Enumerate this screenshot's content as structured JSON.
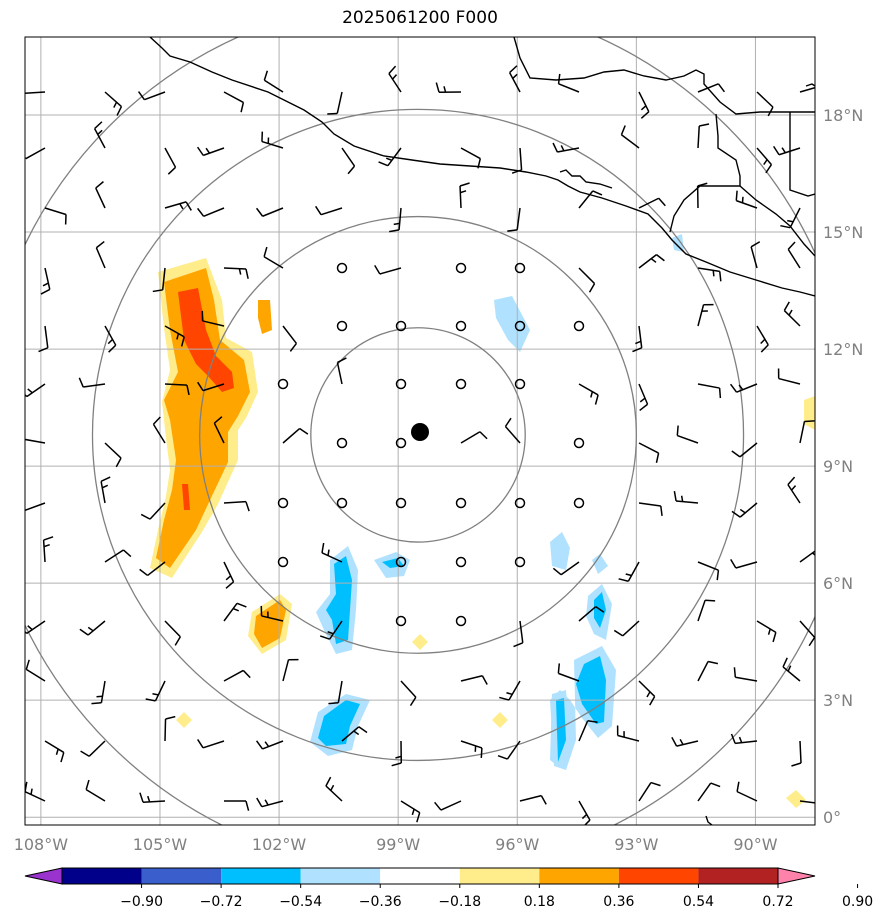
{
  "title": "2025061200 F000",
  "map": {
    "lon_range": [
      -108.4,
      -88.5
    ],
    "lat_range": [
      -0.2,
      20.0
    ],
    "lon_ticks": [
      {
        "value": -108,
        "label": "108°W"
      },
      {
        "value": -105,
        "label": "105°W"
      },
      {
        "value": -102,
        "label": "102°W"
      },
      {
        "value": -99,
        "label": "99°W"
      },
      {
        "value": -96,
        "label": "96°W"
      },
      {
        "value": -93,
        "label": "93°W"
      },
      {
        "value": -90,
        "label": "90°W"
      }
    ],
    "lat_ticks": [
      {
        "value": 0,
        "label": "0°"
      },
      {
        "value": 3,
        "label": "3°N"
      },
      {
        "value": 6,
        "label": "6°N"
      },
      {
        "value": 9,
        "label": "9°N"
      },
      {
        "value": 12,
        "label": "12°N"
      },
      {
        "value": 15,
        "label": "15°N"
      },
      {
        "value": 18,
        "label": "18°N"
      }
    ],
    "center": {
      "lon": -98.5,
      "lat": 9.8
    },
    "range_rings_deg": [
      2.7,
      5.5,
      8.2,
      11.0
    ],
    "colors": {
      "grid": "#b0b0b0",
      "ring": "#808080",
      "coast": "#000000"
    }
  },
  "colorbar": {
    "levels": [
      "−0.90",
      "−0.72",
      "−0.54",
      "−0.36",
      "−0.18",
      "0.18",
      "0.36",
      "0.54",
      "0.72",
      "0.90"
    ],
    "colors": [
      "#9a32cd",
      "#00008b",
      "#3a5fcd",
      "#00bfff",
      "#b0e2ff",
      "#ffffff",
      "#ffec8b",
      "#ffa500",
      "#ff4500",
      "#b22222",
      "#ff82ab"
    ]
  }
}
